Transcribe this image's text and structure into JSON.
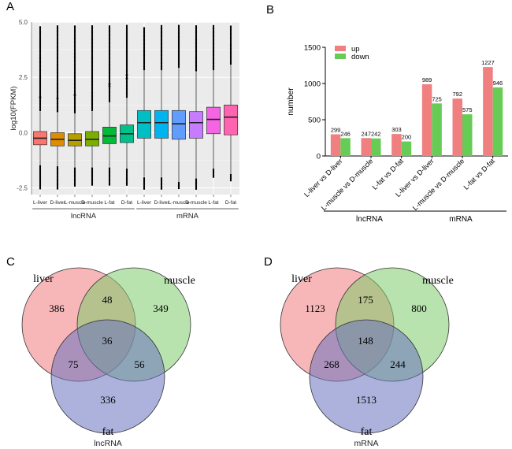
{
  "panels": {
    "A": {
      "letter": "A"
    },
    "B": {
      "letter": "B"
    },
    "C": {
      "letter": "C"
    },
    "D": {
      "letter": "D"
    }
  },
  "chart_data": [
    {
      "id": "A",
      "type": "box",
      "ylabel": "log10(FPKM)",
      "ylim": [
        -2.8,
        5.0
      ],
      "yticks": [
        -2.5,
        0.0,
        2.5,
        5.0
      ],
      "yticklabels": [
        "-2.5",
        "0.0",
        "2.5",
        "5.0"
      ],
      "grid": true,
      "categories": [
        "L-liver",
        "D-liver",
        "L-muscle",
        "D-muscle",
        "L-fat",
        "D-fat",
        "L-liver",
        "D-liver",
        "L-muscle",
        "D-muscle",
        "L-fat",
        "D-fat"
      ],
      "groups": [
        {
          "label": "lncRNA",
          "from": 0,
          "to": 5
        },
        {
          "label": "mRNA",
          "from": 6,
          "to": 11
        }
      ],
      "colors": [
        "#F8766D",
        "#DE8C00",
        "#B79F00",
        "#7CAE00",
        "#00BA38",
        "#00C08B",
        "#00BFC4",
        "#00B4F0",
        "#619CFF",
        "#C77CFF",
        "#F564E3",
        "#FF64B0"
      ],
      "series": [
        {
          "q1": -0.55,
          "median": -0.25,
          "q3": 0.05,
          "lo": -1.45,
          "hi": 0.95
        },
        {
          "q1": -0.6,
          "median": -0.3,
          "q3": 0.0,
          "lo": -1.5,
          "hi": 0.9
        },
        {
          "q1": -0.6,
          "median": -0.35,
          "q3": -0.05,
          "lo": -1.55,
          "hi": 0.85
        },
        {
          "q1": -0.6,
          "median": -0.3,
          "q3": 0.05,
          "lo": -1.55,
          "hi": 0.95
        },
        {
          "q1": -0.5,
          "median": -0.15,
          "q3": 0.25,
          "lo": -1.55,
          "hi": 1.35
        },
        {
          "q1": -0.45,
          "median": -0.05,
          "q3": 0.35,
          "lo": -1.6,
          "hi": 1.55
        },
        {
          "q1": -0.25,
          "median": 0.45,
          "q3": 1.0,
          "lo": -2.0,
          "hi": 2.8
        },
        {
          "q1": -0.25,
          "median": 0.45,
          "q3": 1.0,
          "lo": -2.0,
          "hi": 2.8
        },
        {
          "q1": -0.3,
          "median": 0.4,
          "q3": 1.0,
          "lo": -2.2,
          "hi": 2.9
        },
        {
          "q1": -0.25,
          "median": 0.45,
          "q3": 0.95,
          "lo": -2.05,
          "hi": 2.75
        },
        {
          "q1": -0.05,
          "median": 0.6,
          "q3": 1.15,
          "lo": -1.6,
          "hi": 2.8
        },
        {
          "q1": -0.1,
          "median": 0.7,
          "q3": 1.25,
          "lo": -1.85,
          "hi": 3.05
        }
      ],
      "outliers_top": [
        4.8,
        4.85,
        4.85,
        4.85,
        4.85,
        4.85,
        4.75,
        4.85,
        4.85,
        4.85,
        4.85,
        4.85
      ],
      "outliers_bottom": [
        -2.55,
        -2.55,
        -2.45,
        -2.4,
        -2.4,
        -2.4,
        -2.55,
        -2.55,
        -2.55,
        -2.55,
        -2.05,
        -2.2
      ]
    },
    {
      "id": "B",
      "type": "bar",
      "ylabel": "number",
      "ylim": [
        0,
        1500
      ],
      "yticks": [
        0,
        500,
        1000,
        1500
      ],
      "yticklabels": [
        "0",
        "500",
        "1000",
        "1500"
      ],
      "categories": [
        "L-liver vs D-liver",
        "L-muscle vs D-muscle",
        "L-fat vs D-fat",
        "L-liver vs D-liver",
        "L-muscle vs D-muscle",
        "L-fat vs D-fat"
      ],
      "groups": [
        {
          "label": "lncRNA",
          "from": 0,
          "to": 2
        },
        {
          "label": "mRNA",
          "from": 3,
          "to": 5
        }
      ],
      "legend_position": "top-left",
      "series": [
        {
          "name": "up",
          "color": "#F08080",
          "values": [
            299,
            247,
            303,
            989,
            792,
            1227
          ]
        },
        {
          "name": "down",
          "color": "#66CC55",
          "values": [
            246,
            242,
            200,
            725,
            575,
            946
          ]
        }
      ]
    },
    {
      "id": "C",
      "type": "venn",
      "caption": "lncRNA",
      "sets": [
        {
          "name": "liver",
          "color": "#F07C80"
        },
        {
          "name": "muscle",
          "color": "#80CC6C"
        },
        {
          "name": "fat",
          "color": "#6A72C0"
        }
      ],
      "regions": {
        "liver_only": "386",
        "muscle_only": "349",
        "fat_only": "336",
        "liver_muscle": "48",
        "liver_fat": "75",
        "muscle_fat": "56",
        "all": "36"
      }
    },
    {
      "id": "D",
      "type": "venn",
      "caption": "mRNA",
      "sets": [
        {
          "name": "liver",
          "color": "#F07C80"
        },
        {
          "name": "muscle",
          "color": "#80CC6C"
        },
        {
          "name": "fat",
          "color": "#6A72C0"
        }
      ],
      "regions": {
        "liver_only": "1123",
        "muscle_only": "800",
        "fat_only": "1513",
        "liver_muscle": "175",
        "liver_fat": "268",
        "muscle_fat": "244",
        "all": "148"
      }
    }
  ]
}
